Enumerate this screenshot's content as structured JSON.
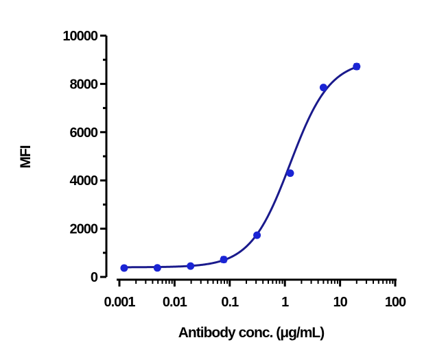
{
  "chart_data": {
    "type": "scatter",
    "title": "",
    "xlabel": "Antibody conc. (μg/mL)",
    "ylabel": "MFI",
    "x_scale": "log",
    "xlim": [
      0.001,
      100
    ],
    "ylim": [
      0,
      10000
    ],
    "x_tick_labels": [
      "0.001",
      "0.01",
      "0.1",
      "1",
      "10",
      "100"
    ],
    "x_tick_values": [
      0.001,
      0.01,
      0.1,
      1,
      10,
      100
    ],
    "y_tick_labels": [
      "0",
      "2000",
      "4000",
      "6000",
      "8000",
      "10000"
    ],
    "y_tick_values": [
      0,
      2000,
      4000,
      6000,
      8000,
      10000
    ],
    "grid": false,
    "legend": "none",
    "series": [
      {
        "points": [
          {
            "x": 0.00122,
            "y": 370,
            "err": 90
          },
          {
            "x": 0.00488,
            "y": 375,
            "err": 80
          },
          {
            "x": 0.0195,
            "y": 450,
            "err": 70
          },
          {
            "x": 0.078,
            "y": 720,
            "err": 110
          },
          {
            "x": 0.3125,
            "y": 1730,
            "err": 80
          },
          {
            "x": 1.25,
            "y": 4300,
            "err": 90
          },
          {
            "x": 5,
            "y": 7850,
            "err": 80
          },
          {
            "x": 20,
            "y": 8720,
            "err": 110
          }
        ],
        "fit": {
          "bottom": 400,
          "top": 9000,
          "ec50": 1.25,
          "hill": 1.2
        }
      }
    ],
    "colors": {
      "marker": "#1a24d4",
      "curve": "#1a1a8c",
      "axis": "#000000"
    }
  }
}
